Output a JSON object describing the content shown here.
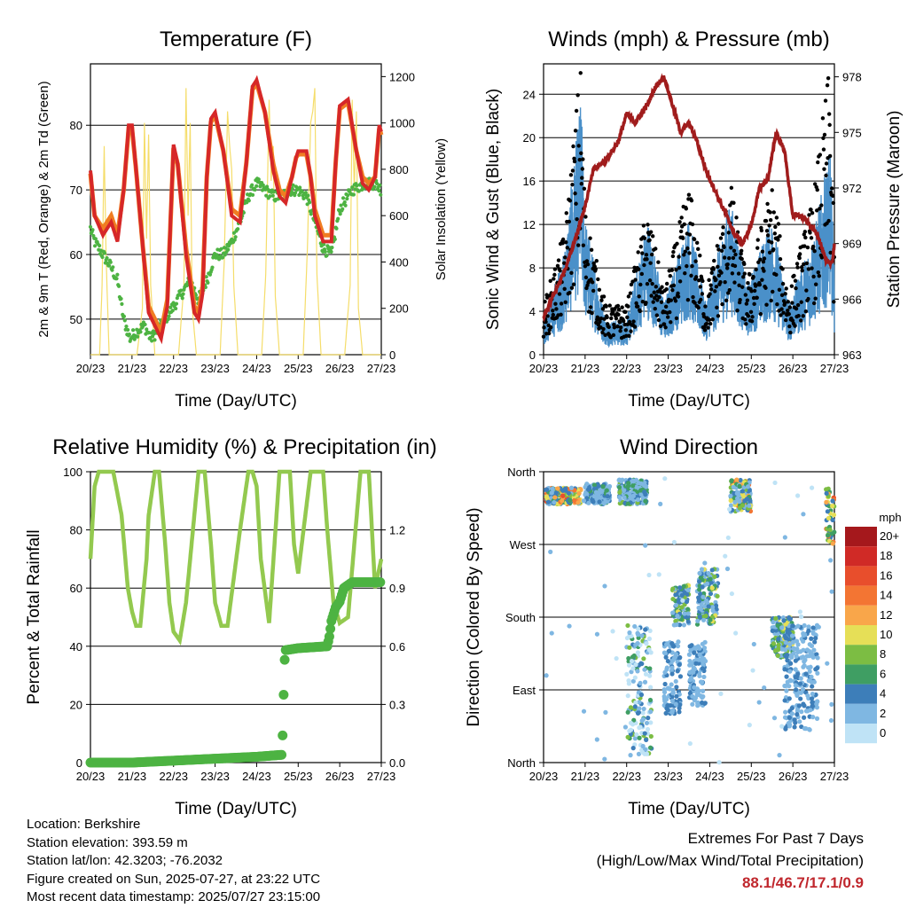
{
  "chart_data": [
    {
      "type": "line",
      "title": "Temperature (F)",
      "xlabel": "Time (Day/UTC)",
      "ylabel": "2m & 9m T (Red, Orange) & 2m Td (Green)",
      "y2label": "Solar Insolation (Yellow)",
      "x_ticks": [
        "20/23",
        "21/23",
        "22/23",
        "23/23",
        "24/23",
        "25/23",
        "26/23",
        "27/23"
      ],
      "ylim": [
        44.5,
        89.5
      ],
      "y_ticks": [
        50,
        60,
        70,
        80
      ],
      "y2lim": [
        0,
        1255
      ],
      "y2_ticks": [
        0,
        200,
        400,
        600,
        800,
        1000,
        1200
      ],
      "colors": {
        "t2m": "#d62728",
        "t9m": "#f07d22",
        "td2m": "#4db342",
        "solar": "#f5dd6a"
      },
      "series": [
        {
          "name": "2m T",
          "x": [
            0,
            0.1,
            0.3,
            0.5,
            0.65,
            0.8,
            0.92,
            1.0,
            1.1,
            1.25,
            1.4,
            1.55,
            1.7,
            1.85,
            1.95,
            2.0,
            2.1,
            2.3,
            2.5,
            2.6,
            2.7,
            2.8,
            2.9,
            3.0,
            3.2,
            3.4,
            3.6,
            3.75,
            3.9,
            4.0,
            4.2,
            4.4,
            4.55,
            4.7,
            4.85,
            4.95,
            5.0,
            5.2,
            5.3,
            5.4,
            5.6,
            5.8,
            5.9,
            6.0,
            6.2,
            6.4,
            6.55,
            6.7,
            6.85,
            6.95,
            7.0
          ],
          "values": [
            73,
            66,
            63,
            65,
            62,
            70,
            80,
            80,
            73,
            62,
            51,
            49,
            47,
            52,
            69,
            77,
            74,
            60,
            51,
            50,
            54,
            72,
            81,
            82,
            76,
            66,
            65,
            74,
            86,
            87,
            82,
            73,
            69,
            68,
            72,
            75,
            76,
            76,
            72,
            66,
            62,
            62,
            74,
            83,
            84,
            76,
            71,
            70,
            72,
            80,
            79
          ]
        },
        {
          "name": "9m T",
          "x": [
            0,
            0.1,
            0.3,
            0.5,
            0.65,
            0.8,
            0.92,
            1.0,
            1.1,
            1.25,
            1.4,
            1.55,
            1.7,
            1.85,
            1.95,
            2.0,
            2.1,
            2.3,
            2.5,
            2.6,
            2.7,
            2.8,
            2.9,
            3.0,
            3.2,
            3.4,
            3.6,
            3.75,
            3.9,
            4.0,
            4.2,
            4.4,
            4.55,
            4.7,
            4.85,
            4.95,
            5.0,
            5.2,
            5.3,
            5.4,
            5.6,
            5.8,
            5.9,
            6.0,
            6.2,
            6.4,
            6.55,
            6.7,
            6.85,
            6.95,
            7.0
          ],
          "values": [
            72.5,
            66,
            64,
            66,
            63,
            70,
            79.5,
            79.5,
            73,
            62,
            52,
            50,
            48,
            53,
            68.5,
            76.5,
            74,
            61,
            52,
            51,
            55,
            72,
            80.5,
            81.5,
            76,
            67,
            66,
            74,
            85.5,
            86.5,
            82,
            74,
            70,
            69,
            72,
            75,
            75.5,
            75.5,
            72,
            67,
            63,
            63,
            74,
            82.5,
            83.5,
            76,
            72,
            71,
            72,
            79.5,
            78.5
          ]
        },
        {
          "name": "2m Td",
          "x": [
            0,
            0.1,
            0.3,
            0.5,
            0.65,
            0.8,
            0.95,
            1.1,
            1.3,
            1.45,
            1.6,
            1.8,
            2.0,
            2.2,
            2.4,
            2.6,
            2.8,
            3.0,
            3.2,
            3.4,
            3.6,
            3.8,
            4.0,
            4.2,
            4.4,
            4.6,
            4.8,
            5.0,
            5.2,
            5.4,
            5.6,
            5.8,
            6.0,
            6.3,
            6.6,
            6.85,
            7.0
          ],
          "values": [
            64,
            62,
            60,
            58,
            56,
            50,
            47,
            48,
            49,
            47,
            48,
            50,
            52,
            54,
            56,
            53,
            56,
            60,
            60,
            62,
            65,
            69,
            71,
            70,
            69,
            69,
            70,
            70,
            69,
            65,
            61,
            60,
            67,
            70,
            71,
            71,
            70
          ]
        },
        {
          "name": "Solar Insolation",
          "axis": "y2",
          "x": [
            0,
            0.12,
            0.22,
            0.28,
            0.33,
            0.38,
            0.45,
            0.55,
            0.62,
            0.75,
            0.82,
            0.88,
            0.95,
            1.0,
            1.12,
            1.25,
            1.3,
            1.35,
            1.4,
            1.45,
            1.55,
            1.65,
            1.75,
            1.82,
            1.88,
            1.95,
            2.0,
            2.12,
            2.25,
            2.3,
            2.35,
            2.4,
            2.45,
            2.55,
            2.62,
            2.75,
            2.82,
            2.88,
            2.95,
            3.0,
            3.12,
            3.22,
            3.3,
            3.35,
            3.4,
            3.45,
            3.55,
            3.62,
            3.75,
            3.82,
            3.88,
            3.95,
            4.0,
            4.12,
            4.22,
            4.3,
            4.35,
            4.4,
            4.45,
            4.55,
            4.62,
            4.75,
            4.82,
            4.88,
            4.95,
            5.0,
            5.12,
            5.22,
            5.3,
            5.35,
            5.4,
            5.45,
            5.55,
            5.62,
            5.75,
            5.82,
            5.88,
            5.95,
            6.0,
            6.12,
            6.25,
            6.3,
            6.35,
            6.4,
            6.45,
            6.55,
            6.62,
            6.75,
            6.82,
            6.88,
            6.95,
            7.0
          ],
          "values": [
            0,
            0,
            0,
            300,
            900,
            400,
            0,
            0,
            0,
            0,
            0,
            0,
            0,
            0,
            0,
            200,
            1000,
            500,
            950,
            300,
            0,
            0,
            0,
            0,
            0,
            0,
            0,
            0,
            300,
            1150,
            600,
            1000,
            200,
            0,
            0,
            0,
            0,
            0,
            0,
            0,
            0,
            400,
            1050,
            900,
            800,
            300,
            0,
            0,
            0,
            0,
            0,
            0,
            0,
            0,
            350,
            1100,
            750,
            900,
            250,
            0,
            0,
            0,
            0,
            0,
            0,
            0,
            0,
            450,
            1000,
            1050,
            1150,
            350,
            0,
            0,
            0,
            0,
            0,
            0,
            0,
            0,
            300,
            1100,
            700,
            1050,
            200,
            0,
            0,
            0,
            0,
            0,
            0,
            0
          ]
        }
      ]
    },
    {
      "type": "line",
      "title": "Winds (mph) & Pressure (mb)",
      "xlabel": "Time (Day/UTC)",
      "ylabel": "Sonic Wind & Gust (Blue, Black)",
      "y2label": "Station Pressure (Maroon)",
      "x_ticks": [
        "20/23",
        "21/23",
        "22/23",
        "23/23",
        "24/23",
        "25/23",
        "26/23",
        "27/23"
      ],
      "ylim": [
        0,
        26.8
      ],
      "y_ticks": [
        0,
        4,
        8,
        12,
        16,
        20,
        24
      ],
      "y2lim": [
        963,
        978.7
      ],
      "y2_ticks": [
        963,
        966,
        969,
        972,
        975,
        978
      ],
      "colors": {
        "wind": "#4a90c9",
        "gust": "#000000",
        "pressure": "#a01c1c"
      },
      "series": [
        {
          "name": "Sonic Wind",
          "x": [
            0,
            0.5,
            0.9,
            1.0,
            1.5,
            2.0,
            2.5,
            2.9,
            3.5,
            3.9,
            4.5,
            4.9,
            5.5,
            5.9,
            6.5,
            6.9,
            7.0
          ],
          "values": [
            2,
            6,
            15,
            8,
            2,
            2,
            8,
            3,
            8,
            3,
            9,
            4,
            8,
            3,
            7,
            12,
            5
          ]
        },
        {
          "name": "Gust",
          "x": [
            0,
            0.5,
            0.9,
            1.0,
            1.5,
            2.0,
            2.5,
            2.9,
            3.5,
            3.9,
            4.5,
            4.9,
            5.5,
            5.9,
            6.5,
            6.9,
            7.0
          ],
          "values": [
            4,
            10,
            24,
            12,
            4,
            4,
            12,
            5,
            14,
            5,
            14,
            6,
            14,
            5,
            13,
            24,
            8
          ]
        },
        {
          "name": "Station Pressure",
          "axis": "y2",
          "x": [
            0,
            0.2,
            0.5,
            0.8,
            1.0,
            1.2,
            1.5,
            1.8,
            2.0,
            2.2,
            2.5,
            2.7,
            2.9,
            3.1,
            3.3,
            3.5,
            3.7,
            3.9,
            4.1,
            4.3,
            4.5,
            4.6,
            4.8,
            5.0,
            5.2,
            5.4,
            5.6,
            5.8,
            6.0,
            6.2,
            6.4,
            6.6,
            6.8,
            6.95,
            7.0
          ],
          "values": [
            965,
            966,
            967.5,
            969.5,
            971,
            973,
            973.5,
            974.5,
            976,
            975.5,
            976.5,
            977.5,
            978,
            976.5,
            975,
            975.5,
            974.5,
            973,
            972,
            971,
            970,
            969.5,
            969,
            970,
            972,
            972.5,
            975,
            974,
            970.5,
            970.5,
            970,
            969.5,
            968,
            968,
            969
          ]
        }
      ]
    },
    {
      "type": "line",
      "title": "Relative Humidity (%) & Precipitation (in)",
      "xlabel": "Time (Day/UTC)",
      "ylabel": "Percent & Total Rainfall",
      "x_ticks": [
        "20/23",
        "21/23",
        "22/23",
        "23/23",
        "24/23",
        "25/23",
        "26/23",
        "27/23"
      ],
      "ylim": [
        0,
        100
      ],
      "y_ticks": [
        0,
        20,
        40,
        60,
        80,
        100
      ],
      "y2lim": [
        0,
        1.5
      ],
      "y2_ticks": [
        0.0,
        0.3,
        0.6,
        0.9,
        1.2
      ],
      "colors": {
        "rh": "#93c94f",
        "precip": "#4db342"
      },
      "series": [
        {
          "name": "Relative Humidity",
          "x": [
            0,
            0.1,
            0.2,
            0.55,
            0.75,
            0.9,
            1.0,
            1.1,
            1.2,
            1.35,
            1.4,
            1.55,
            1.65,
            1.8,
            1.9,
            2.0,
            2.15,
            2.3,
            2.6,
            2.75,
            2.9,
            3.0,
            3.15,
            3.3,
            3.6,
            3.8,
            3.9,
            4.0,
            4.1,
            4.3,
            4.55,
            4.7,
            4.8,
            4.9,
            5.0,
            5.3,
            5.5,
            5.6,
            5.7,
            5.85,
            6.0,
            6.2,
            6.5,
            6.7,
            6.85,
            7.0
          ],
          "values": [
            70,
            95,
            100,
            100,
            85,
            60,
            52,
            47,
            47,
            70,
            85,
            100,
            100,
            75,
            55,
            45,
            42,
            55,
            100,
            100,
            75,
            55,
            47,
            47,
            80,
            100,
            100,
            95,
            70,
            48,
            100,
            100,
            100,
            75,
            65,
            100,
            100,
            100,
            80,
            55,
            48,
            50,
            100,
            100,
            60,
            70
          ]
        },
        {
          "name": "Total Rainfall",
          "axis": "y2",
          "x": [
            0,
            1.0,
            2.0,
            3.0,
            4.0,
            4.6,
            4.64,
            4.66,
            4.7,
            5.0,
            5.7,
            5.75,
            5.8,
            5.9,
            6.0,
            6.1,
            6.3,
            7.0
          ],
          "values": [
            0,
            0,
            0.01,
            0.02,
            0.03,
            0.04,
            0.2,
            0.5,
            0.58,
            0.59,
            0.6,
            0.65,
            0.73,
            0.8,
            0.83,
            0.9,
            0.93,
            0.93
          ]
        }
      ]
    },
    {
      "type": "scatter",
      "title": "Wind Direction",
      "xlabel": "Time (Day/UTC)",
      "ylabel": "Direction (Colored By Speed)",
      "x_ticks": [
        "20/23",
        "21/23",
        "22/23",
        "23/23",
        "24/23",
        "25/23",
        "26/23",
        "27/23"
      ],
      "y_ticks": [
        "North",
        "East",
        "South",
        "West",
        "North"
      ],
      "y_values": [
        0,
        90,
        180,
        270,
        360
      ],
      "legend_title": "mph",
      "legend": [
        "20+",
        "18",
        "16",
        "14",
        "12",
        "10",
        "8",
        "6",
        "4",
        "2",
        "0"
      ],
      "legend_colors": [
        "#a5181c",
        "#d02a26",
        "#e84e2c",
        "#f37533",
        "#f9a64a",
        "#e6df57",
        "#7cbd43",
        "#3f9e63",
        "#3d7eb9",
        "#7fb7e2",
        "#bfe3f6"
      ],
      "clusters": [
        {
          "x": [
            0.05,
            0.9
          ],
          "dir": [
            320,
            340
          ],
          "speed": [
            2,
            16
          ]
        },
        {
          "x": [
            1.0,
            1.6
          ],
          "dir": [
            320,
            345
          ],
          "speed": [
            1,
            6
          ]
        },
        {
          "x": [
            1.8,
            2.5
          ],
          "dir": [
            320,
            350
          ],
          "speed": [
            1,
            8
          ]
        },
        {
          "x": [
            2.0,
            2.6
          ],
          "dir": [
            10,
            170
          ],
          "speed": [
            0,
            8
          ]
        },
        {
          "x": [
            3.1,
            3.5
          ],
          "dir": [
            170,
            220
          ],
          "speed": [
            2,
            10
          ]
        },
        {
          "x": [
            2.9,
            3.3
          ],
          "dir": [
            60,
            150
          ],
          "speed": [
            1,
            5
          ]
        },
        {
          "x": [
            3.7,
            4.2
          ],
          "dir": [
            170,
            240
          ],
          "speed": [
            2,
            10
          ]
        },
        {
          "x": [
            3.5,
            3.9
          ],
          "dir": [
            70,
            150
          ],
          "speed": [
            1,
            5
          ]
        },
        {
          "x": [
            4.5,
            5.0
          ],
          "dir": [
            310,
            350
          ],
          "speed": [
            2,
            14
          ]
        },
        {
          "x": [
            5.5,
            6.0
          ],
          "dir": [
            130,
            180
          ],
          "speed": [
            2,
            10
          ]
        },
        {
          "x": [
            5.8,
            6.6
          ],
          "dir": [
            40,
            170
          ],
          "speed": [
            1,
            5
          ]
        },
        {
          "x": [
            6.8,
            7.0
          ],
          "dir": [
            270,
            340
          ],
          "speed": [
            4,
            16
          ]
        }
      ]
    }
  ],
  "info": {
    "location": "Location: Berkshire",
    "elevation": "Station elevation: 393.59 m",
    "latlon": "Station lat/lon: 42.3203; -76.2032",
    "created": "Figure created on Sun, 2025-07-27, at 23:22 UTC",
    "recent": "Most recent data timestamp: 2025/07/27 23:15:00"
  },
  "extremes": {
    "title": "Extremes For Past 7 Days",
    "subtitle": "(High/Low/Max Wind/Total Precipitation)",
    "values": "88.1/46.7/17.1/0.9"
  }
}
